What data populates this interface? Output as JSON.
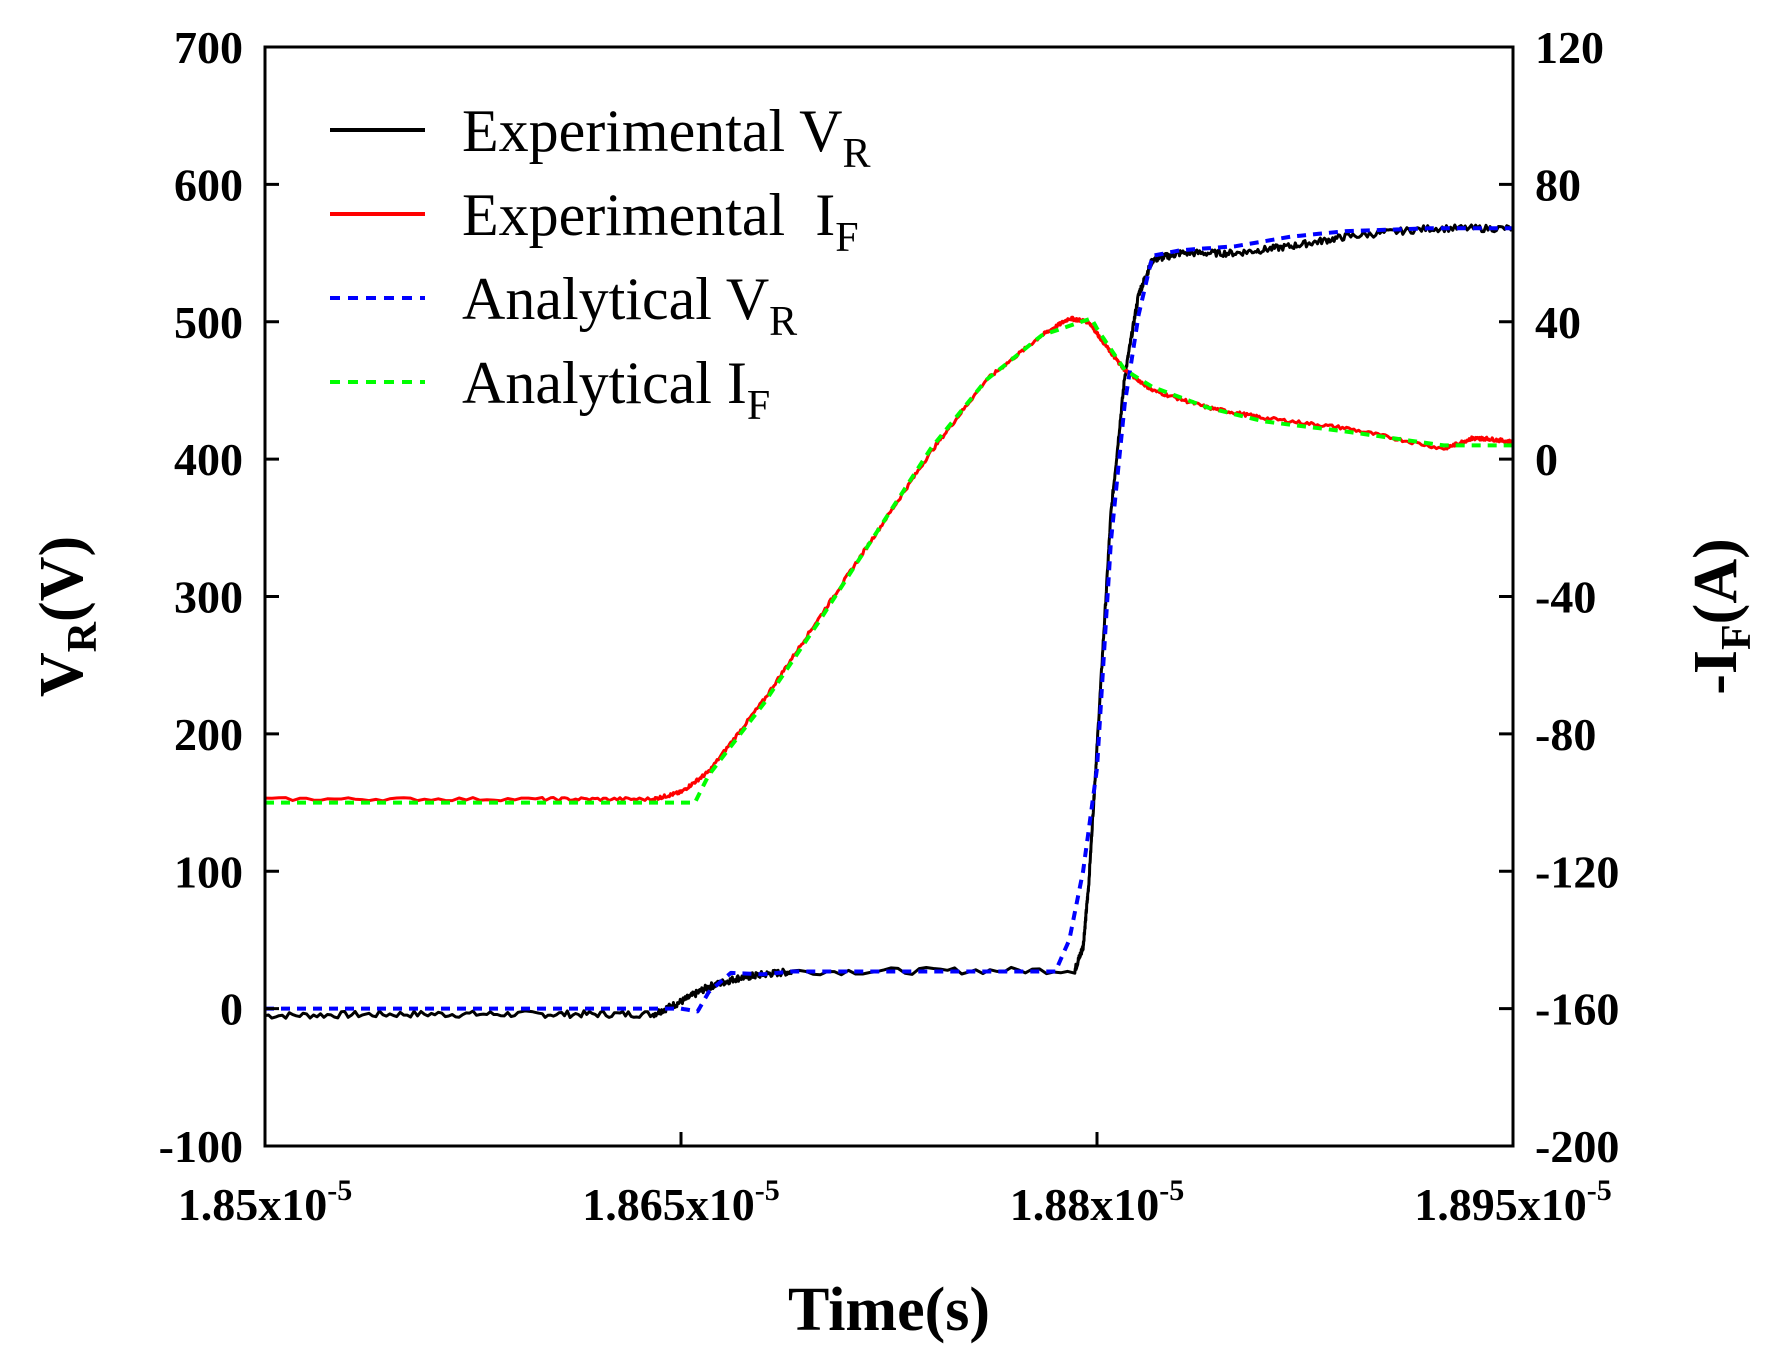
{
  "chart_data": {
    "type": "line",
    "xlabel": "Time(s)",
    "ylabel_left": {
      "base": "V",
      "sub": "R",
      "tail": "(V)"
    },
    "ylabel_right": {
      "base": "-I",
      "sub": "F",
      "tail": "(A)"
    },
    "xlim": [
      1.85e-05,
      1.895e-05
    ],
    "ylim_left": [
      -100,
      700
    ],
    "ylim_right": [
      -200,
      120
    ],
    "x_ticks": [
      {
        "value": 1.85e-05,
        "mantissa": "1.85x10",
        "exp": "-5"
      },
      {
        "value": 1.865e-05,
        "mantissa": "1.865x10",
        "exp": "-5"
      },
      {
        "value": 1.88e-05,
        "mantissa": "1.88x10",
        "exp": "-5"
      },
      {
        "value": 1.895e-05,
        "mantissa": "1.895x10",
        "exp": "-5"
      }
    ],
    "y_left_ticks": [
      "-100",
      "0",
      "100",
      "200",
      "300",
      "400",
      "500",
      "600",
      "700"
    ],
    "y_right_ticks": [
      "-200",
      "-160",
      "-120",
      "-80",
      "-40",
      "0",
      "40",
      "80",
      "120"
    ],
    "legend": {
      "position": "top-left",
      "entries": [
        {
          "base": "Experimental V",
          "sub": "R",
          "color": "#000000",
          "dash": "solid"
        },
        {
          "base": "Experimental  I",
          "sub": "F",
          "color": "#ff0000",
          "dash": "solid"
        },
        {
          "base": "Analytical V",
          "sub": "R",
          "color": "#0000ff",
          "dash": "dashed"
        },
        {
          "base": "Analytical I",
          "sub": "F",
          "color": "#00ff00",
          "dash": "dashed"
        }
      ]
    },
    "series": [
      {
        "name": "Experimental VR",
        "axis": "left",
        "color": "#000000",
        "dash": "solid",
        "noise": 2.5,
        "x": [
          1.85e-05,
          1.855e-05,
          1.86e-05,
          1.864e-05,
          1.865e-05,
          1.866e-05,
          1.867e-05,
          1.868e-05,
          1.869e-05,
          1.8792e-05,
          1.8795e-05,
          1.8797e-05,
          1.88e-05,
          1.8805e-05,
          1.881e-05,
          1.8815e-05,
          1.882e-05,
          1.883e-05,
          1.885e-05,
          1.887e-05,
          1.889e-05,
          1.892e-05,
          1.895e-05
        ],
        "y": [
          -5,
          -4,
          -4,
          -4,
          5,
          16,
          22,
          25,
          27,
          28,
          45,
          90,
          190,
          360,
          460,
          520,
          545,
          550,
          550,
          555,
          562,
          568,
          568
        ]
      },
      {
        "name": "Experimental IF",
        "axis": "right",
        "color": "#ff0000",
        "dash": "solid",
        "noise": 0.5,
        "x": [
          1.85e-05,
          1.86e-05,
          1.864e-05,
          1.865e-05,
          1.866e-05,
          1.868e-05,
          1.87e-05,
          1.872e-05,
          1.874e-05,
          1.876e-05,
          1.878e-05,
          1.879e-05,
          1.8797e-05,
          1.8805e-05,
          1.881e-05,
          1.882e-05,
          1.884e-05,
          1.886e-05,
          1.889e-05,
          1.8925e-05,
          1.8935e-05,
          1.894e-05,
          1.895e-05
        ],
        "y": [
          -99,
          -99,
          -99,
          -97,
          -91,
          -70,
          -46,
          -22,
          2,
          23,
          36,
          41,
          40,
          31,
          26,
          20,
          15,
          12,
          9,
          3,
          6,
          6,
          5
        ]
      },
      {
        "name": "Analytical VR",
        "axis": "left",
        "color": "#0000ff",
        "dash": "dashed",
        "noise": 0,
        "x": [
          1.85e-05,
          1.855e-05,
          1.86e-05,
          1.865e-05,
          1.8656e-05,
          1.866e-05,
          1.8668e-05,
          1.868e-05,
          1.869e-05,
          1.8785e-05,
          1.879e-05,
          1.8795e-05,
          1.88e-05,
          1.8805e-05,
          1.881e-05,
          1.8815e-05,
          1.882e-05,
          1.883e-05,
          1.885e-05,
          1.887e-05,
          1.889e-05,
          1.892e-05,
          1.895e-05
        ],
        "y": [
          0,
          0,
          0,
          0,
          -2,
          12,
          26,
          25,
          27,
          27,
          50,
          100,
          175,
          340,
          440,
          505,
          548,
          552,
          555,
          562,
          566,
          568,
          568
        ]
      },
      {
        "name": "Analytical IF",
        "axis": "right",
        "color": "#00ff00",
        "dash": "dashed",
        "noise": 0,
        "x": [
          1.85e-05,
          1.86e-05,
          1.8655e-05,
          1.866e-05,
          1.868e-05,
          1.87e-05,
          1.872e-05,
          1.874e-05,
          1.876e-05,
          1.878e-05,
          1.8798e-05,
          1.88e-05,
          1.8805e-05,
          1.881e-05,
          1.882e-05,
          1.884e-05,
          1.886e-05,
          1.889e-05,
          1.8925e-05,
          1.8945e-05,
          1.895e-05
        ],
        "y": [
          -100,
          -100,
          -100,
          -92,
          -71,
          -47,
          -22,
          3,
          23,
          36,
          41,
          38,
          32,
          26,
          21,
          15,
          11,
          8,
          4,
          4,
          4
        ]
      }
    ]
  }
}
